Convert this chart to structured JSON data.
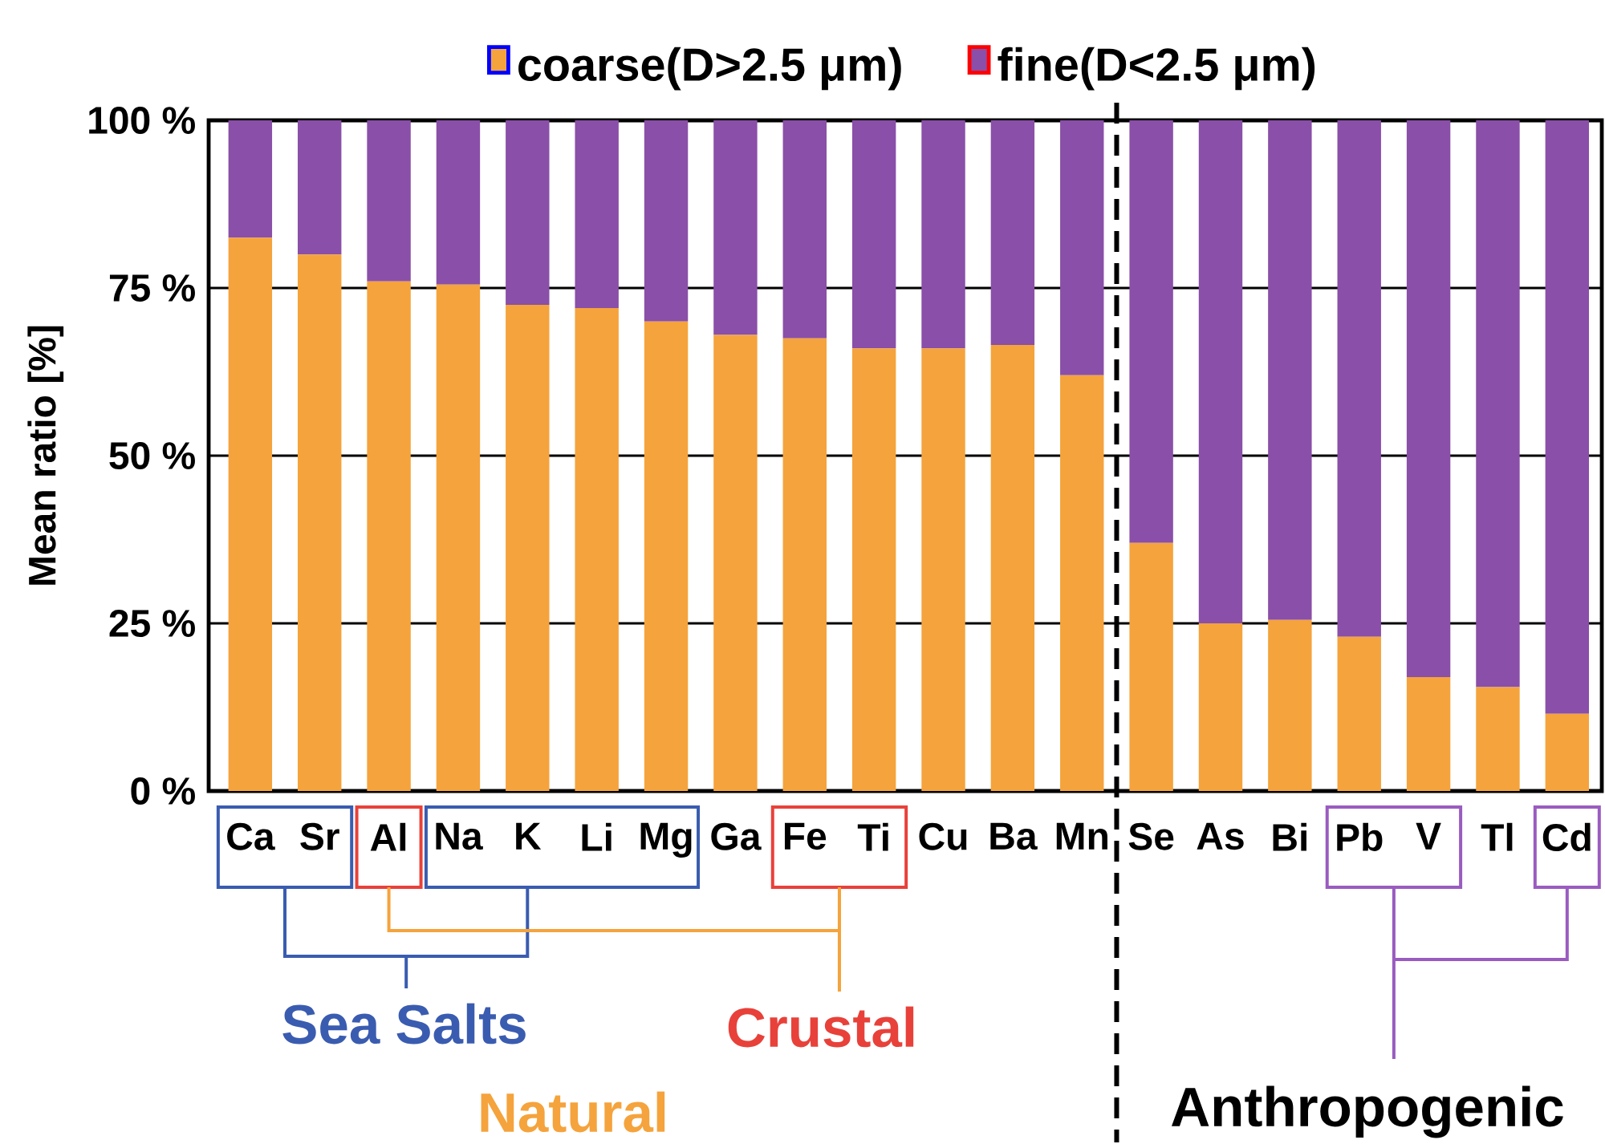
{
  "chart_data": {
    "type": "bar",
    "stacked": true,
    "ylabel": "Mean ratio [%]",
    "categories": [
      "Ca",
      "Sr",
      "Al",
      "Na",
      "K",
      "Li",
      "Mg",
      "Ga",
      "Fe",
      "Ti",
      "Cu",
      "Ba",
      "Mn",
      "Se",
      "As",
      "Bi",
      "Pb",
      "V",
      "Tl",
      "Cd"
    ],
    "series": [
      {
        "name": "coarse(D>2.5 μm)",
        "color": "#f5a33c",
        "values": [
          82.5,
          80,
          76,
          75.5,
          72.5,
          72,
          70,
          68,
          67.5,
          66,
          66,
          66.5,
          62,
          37,
          25,
          25.5,
          23,
          17,
          15.5,
          11.5
        ]
      },
      {
        "name": "fine(D<2.5 μm)",
        "color": "#8a4fa8",
        "values": [
          17.5,
          20,
          24,
          24.5,
          27.5,
          28,
          30,
          32,
          32.5,
          34,
          34,
          33.5,
          38,
          63,
          75,
          74.5,
          77,
          83,
          84.5,
          88.5
        ]
      }
    ],
    "ylim": [
      0,
      100
    ],
    "yticks": [
      {
        "value": 0,
        "label": "0 %"
      },
      {
        "value": 25,
        "label": "25 %"
      },
      {
        "value": 50,
        "label": "50 %"
      },
      {
        "value": 75,
        "label": "75 %"
      },
      {
        "value": 100,
        "label": "100 %"
      }
    ],
    "grid": "y",
    "legend": "top",
    "annotations": [
      "Sea Salts",
      "Crustal",
      "Natural",
      "Anthropogenic"
    ]
  }
}
